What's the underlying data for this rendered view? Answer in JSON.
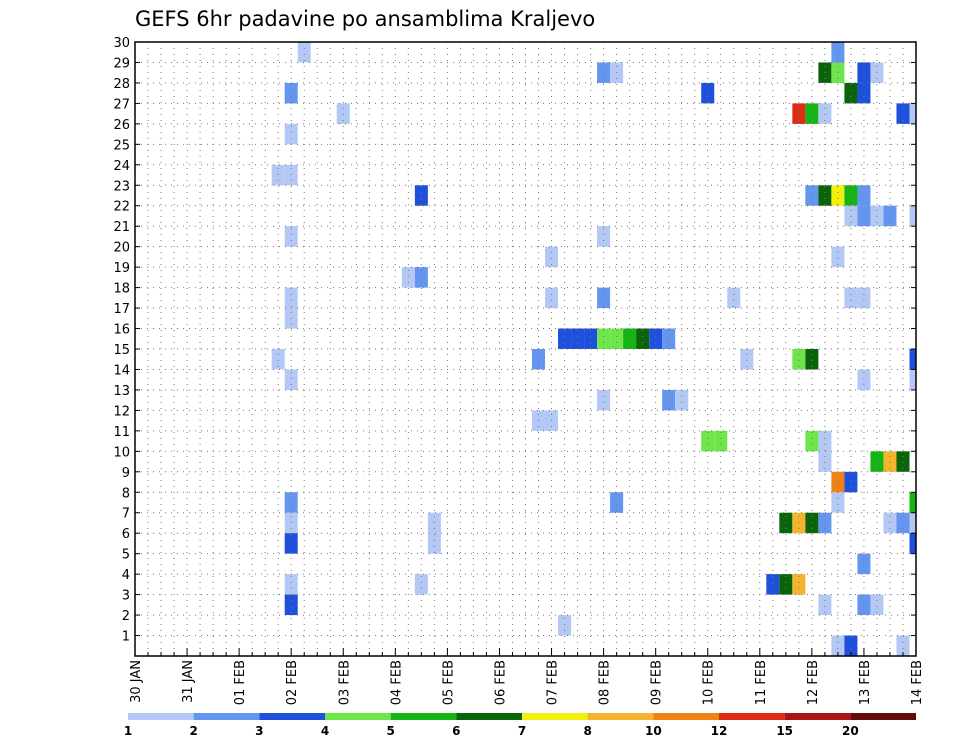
{
  "chart_data": {
    "type": "heatmap",
    "title": "GEFS 6hr padavine po ansamblima Kraljevo",
    "xlabel": "",
    "ylabel": "",
    "x_ticks": [
      "30 JAN",
      "31 JAN",
      "01 FEB",
      "02 FEB",
      "03 FEB",
      "04 FEB",
      "05 FEB",
      "06 FEB",
      "07 FEB",
      "08 FEB",
      "09 FEB",
      "10 FEB",
      "11 FEB",
      "12 FEB",
      "13 FEB",
      "14 FEB"
    ],
    "y_ticks": [
      "1",
      "2",
      "3",
      "4",
      "5",
      "6",
      "7",
      "8",
      "9",
      "10",
      "11",
      "12",
      "13",
      "14",
      "15",
      "16",
      "17",
      "18",
      "19",
      "20",
      "21",
      "22",
      "23",
      "24",
      "25",
      "26",
      "27",
      "28",
      "29",
      "30"
    ],
    "x_range_steps": [
      0,
      60
    ],
    "y_range": [
      0,
      30
    ],
    "grid": true,
    "legend": {
      "placement": "bottom",
      "labels": [
        "1",
        "2",
        "3",
        "4",
        "5",
        "6",
        "7",
        "8",
        "10",
        "12",
        "15",
        "20"
      ],
      "colors": [
        "#b4c8f5",
        "#6496f0",
        "#1e50dc",
        "#6ee64b",
        "#14b414",
        "#0a640a",
        "#f0f00a",
        "#f5b42d",
        "#f08214",
        "#dc2d14",
        "#aa1414",
        "#640a0a"
      ]
    },
    "cells": [
      {
        "x": 13,
        "y": 29,
        "level": 0
      },
      {
        "x": 54,
        "y": 29,
        "level": 1
      },
      {
        "x": 36,
        "y": 28,
        "level": 1
      },
      {
        "x": 37,
        "y": 28,
        "level": 0
      },
      {
        "x": 53,
        "y": 28,
        "level": 5
      },
      {
        "x": 54,
        "y": 28,
        "level": 3
      },
      {
        "x": 56,
        "y": 28,
        "level": 2
      },
      {
        "x": 57,
        "y": 28,
        "level": 0
      },
      {
        "x": 12,
        "y": 27,
        "level": 1
      },
      {
        "x": 44,
        "y": 27,
        "level": 2
      },
      {
        "x": 55,
        "y": 27,
        "level": 5
      },
      {
        "x": 56,
        "y": 27,
        "level": 2
      },
      {
        "x": 16,
        "y": 26,
        "level": 0
      },
      {
        "x": 51,
        "y": 26,
        "level": 9
      },
      {
        "x": 52,
        "y": 26,
        "level": 4
      },
      {
        "x": 53,
        "y": 26,
        "level": 0
      },
      {
        "x": 59,
        "y": 26,
        "level": 2
      },
      {
        "x": 60,
        "y": 26,
        "level": 0
      },
      {
        "x": 12,
        "y": 25,
        "level": 0
      },
      {
        "x": 11,
        "y": 23,
        "level": 0
      },
      {
        "x": 12,
        "y": 23,
        "level": 0
      },
      {
        "x": 22,
        "y": 22,
        "level": 2
      },
      {
        "x": 52,
        "y": 22,
        "level": 1
      },
      {
        "x": 53,
        "y": 22,
        "level": 5
      },
      {
        "x": 54,
        "y": 22,
        "level": 6
      },
      {
        "x": 55,
        "y": 22,
        "level": 4
      },
      {
        "x": 56,
        "y": 22,
        "level": 1
      },
      {
        "x": 55,
        "y": 21,
        "level": 0
      },
      {
        "x": 56,
        "y": 21,
        "level": 1
      },
      {
        "x": 57,
        "y": 21,
        "level": 0
      },
      {
        "x": 58,
        "y": 21,
        "level": 1
      },
      {
        "x": 60,
        "y": 21,
        "level": 0
      },
      {
        "x": 12,
        "y": 20,
        "level": 0
      },
      {
        "x": 36,
        "y": 20,
        "level": 0
      },
      {
        "x": 32,
        "y": 19,
        "level": 0
      },
      {
        "x": 54,
        "y": 19,
        "level": 0
      },
      {
        "x": 21,
        "y": 18,
        "level": 0
      },
      {
        "x": 22,
        "y": 18,
        "level": 1
      },
      {
        "x": 12,
        "y": 17,
        "level": 0
      },
      {
        "x": 32,
        "y": 17,
        "level": 0
      },
      {
        "x": 36,
        "y": 17,
        "level": 1
      },
      {
        "x": 46,
        "y": 17,
        "level": 0
      },
      {
        "x": 55,
        "y": 17,
        "level": 0
      },
      {
        "x": 56,
        "y": 17,
        "level": 0
      },
      {
        "x": 12,
        "y": 16,
        "level": 0
      },
      {
        "x": 33,
        "y": 15,
        "level": 2
      },
      {
        "x": 34,
        "y": 15,
        "level": 2
      },
      {
        "x": 35,
        "y": 15,
        "level": 2
      },
      {
        "x": 36,
        "y": 15,
        "level": 3
      },
      {
        "x": 37,
        "y": 15,
        "level": 3
      },
      {
        "x": 38,
        "y": 15,
        "level": 4
      },
      {
        "x": 39,
        "y": 15,
        "level": 5
      },
      {
        "x": 40,
        "y": 15,
        "level": 2
      },
      {
        "x": 41,
        "y": 15,
        "level": 1
      },
      {
        "x": 11,
        "y": 14,
        "level": 0
      },
      {
        "x": 31,
        "y": 14,
        "level": 1
      },
      {
        "x": 47,
        "y": 14,
        "level": 0
      },
      {
        "x": 51,
        "y": 14,
        "level": 3
      },
      {
        "x": 52,
        "y": 14,
        "level": 5
      },
      {
        "x": 60,
        "y": 14,
        "level": 2
      },
      {
        "x": 12,
        "y": 13,
        "level": 0
      },
      {
        "x": 56,
        "y": 13,
        "level": 0
      },
      {
        "x": 60,
        "y": 13,
        "level": 0
      },
      {
        "x": 36,
        "y": 12,
        "level": 0
      },
      {
        "x": 41,
        "y": 12,
        "level": 1
      },
      {
        "x": 42,
        "y": 12,
        "level": 0
      },
      {
        "x": 31,
        "y": 11,
        "level": 0
      },
      {
        "x": 32,
        "y": 11,
        "level": 0
      },
      {
        "x": 44,
        "y": 10,
        "level": 3
      },
      {
        "x": 45,
        "y": 10,
        "level": 3
      },
      {
        "x": 52,
        "y": 10,
        "level": 3
      },
      {
        "x": 53,
        "y": 10,
        "level": 0
      },
      {
        "x": 53,
        "y": 9,
        "level": 0
      },
      {
        "x": 57,
        "y": 9,
        "level": 4
      },
      {
        "x": 58,
        "y": 9,
        "level": 7
      },
      {
        "x": 59,
        "y": 9,
        "level": 5
      },
      {
        "x": 54,
        "y": 8,
        "level": 8
      },
      {
        "x": 55,
        "y": 8,
        "level": 2
      },
      {
        "x": 12,
        "y": 7,
        "level": 1
      },
      {
        "x": 37,
        "y": 7,
        "level": 1
      },
      {
        "x": 54,
        "y": 7,
        "level": 0
      },
      {
        "x": 60,
        "y": 7,
        "level": 4
      },
      {
        "x": 12,
        "y": 6,
        "level": 0
      },
      {
        "x": 23,
        "y": 6,
        "level": 0
      },
      {
        "x": 50,
        "y": 6,
        "level": 5
      },
      {
        "x": 51,
        "y": 6,
        "level": 7
      },
      {
        "x": 52,
        "y": 6,
        "level": 5
      },
      {
        "x": 53,
        "y": 6,
        "level": 1
      },
      {
        "x": 58,
        "y": 6,
        "level": 0
      },
      {
        "x": 59,
        "y": 6,
        "level": 1
      },
      {
        "x": 60,
        "y": 6,
        "level": 0
      },
      {
        "x": 12,
        "y": 5,
        "level": 2
      },
      {
        "x": 23,
        "y": 5,
        "level": 0
      },
      {
        "x": 60,
        "y": 5,
        "level": 2
      },
      {
        "x": 56,
        "y": 4,
        "level": 1
      },
      {
        "x": 12,
        "y": 3,
        "level": 0
      },
      {
        "x": 22,
        "y": 3,
        "level": 0
      },
      {
        "x": 49,
        "y": 3,
        "level": 2
      },
      {
        "x": 50,
        "y": 3,
        "level": 5
      },
      {
        "x": 51,
        "y": 3,
        "level": 7
      },
      {
        "x": 12,
        "y": 2,
        "level": 2
      },
      {
        "x": 53,
        "y": 2,
        "level": 0
      },
      {
        "x": 56,
        "y": 2,
        "level": 1
      },
      {
        "x": 57,
        "y": 2,
        "level": 0
      },
      {
        "x": 33,
        "y": 1,
        "level": 0
      },
      {
        "x": 54,
        "y": 0,
        "level": 0
      },
      {
        "x": 55,
        "y": 0,
        "level": 2
      },
      {
        "x": 59,
        "y": 0,
        "level": 0
      }
    ]
  }
}
